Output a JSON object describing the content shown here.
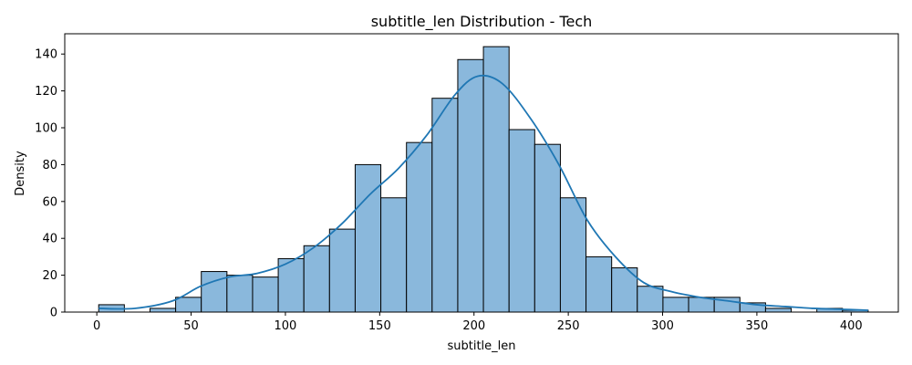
{
  "chart_data": {
    "type": "bar",
    "title": "subtitle_len Distribution - Tech",
    "xlabel": "subtitle_len",
    "ylabel": "Density",
    "xlim": [
      -17,
      425
    ],
    "ylim": [
      0,
      151
    ],
    "x_ticks": [
      0,
      50,
      100,
      150,
      200,
      250,
      300,
      350,
      400
    ],
    "y_ticks": [
      0,
      20,
      40,
      60,
      80,
      100,
      120,
      140
    ],
    "grid": false,
    "bin_width": 13.6,
    "bins": [
      {
        "x0": 1.0,
        "x1": 14.6,
        "value": 4
      },
      {
        "x0": 14.6,
        "x1": 28.2,
        "value": 0
      },
      {
        "x0": 28.2,
        "x1": 41.8,
        "value": 2
      },
      {
        "x0": 41.8,
        "x1": 55.4,
        "value": 8
      },
      {
        "x0": 55.4,
        "x1": 69.0,
        "value": 22
      },
      {
        "x0": 69.0,
        "x1": 82.6,
        "value": 20
      },
      {
        "x0": 82.6,
        "x1": 96.2,
        "value": 19
      },
      {
        "x0": 96.2,
        "x1": 109.8,
        "value": 29
      },
      {
        "x0": 109.8,
        "x1": 123.4,
        "value": 36
      },
      {
        "x0": 123.4,
        "x1": 137.0,
        "value": 45
      },
      {
        "x0": 137.0,
        "x1": 150.6,
        "value": 80
      },
      {
        "x0": 150.6,
        "x1": 164.2,
        "value": 62
      },
      {
        "x0": 164.2,
        "x1": 177.8,
        "value": 92
      },
      {
        "x0": 177.8,
        "x1": 191.4,
        "value": 116
      },
      {
        "x0": 191.4,
        "x1": 205.0,
        "value": 137
      },
      {
        "x0": 205.0,
        "x1": 218.6,
        "value": 144
      },
      {
        "x0": 218.6,
        "x1": 232.2,
        "value": 99
      },
      {
        "x0": 232.2,
        "x1": 245.8,
        "value": 91
      },
      {
        "x0": 245.8,
        "x1": 259.4,
        "value": 62
      },
      {
        "x0": 259.4,
        "x1": 273.0,
        "value": 30
      },
      {
        "x0": 273.0,
        "x1": 286.6,
        "value": 24
      },
      {
        "x0": 286.6,
        "x1": 300.2,
        "value": 14
      },
      {
        "x0": 300.2,
        "x1": 313.8,
        "value": 8
      },
      {
        "x0": 313.8,
        "x1": 327.4,
        "value": 8
      },
      {
        "x0": 327.4,
        "x1": 341.0,
        "value": 8
      },
      {
        "x0": 341.0,
        "x1": 354.6,
        "value": 5
      },
      {
        "x0": 354.6,
        "x1": 368.2,
        "value": 2
      },
      {
        "x0": 368.2,
        "x1": 381.8,
        "value": 0
      },
      {
        "x0": 381.8,
        "x1": 395.4,
        "value": 2
      },
      {
        "x0": 395.4,
        "x1": 409.0,
        "value": 1
      }
    ],
    "kde": {
      "x": [
        1,
        20,
        40,
        55,
        70,
        85,
        100,
        115,
        130,
        145,
        160,
        175,
        190,
        202,
        215,
        230,
        245,
        260,
        275,
        290,
        305,
        320,
        335,
        350,
        365,
        380,
        395,
        409
      ],
      "y": [
        2,
        2,
        6,
        14,
        19,
        21,
        26,
        35,
        48,
        64,
        78,
        96,
        118,
        128,
        124,
        105,
        80,
        50,
        30,
        16,
        11,
        8,
        6,
        4,
        3,
        2,
        1.5,
        1
      ]
    },
    "bar_color": "#8ab8dc",
    "bar_edge_color": "#000000",
    "line_color": "#1f77b4"
  }
}
